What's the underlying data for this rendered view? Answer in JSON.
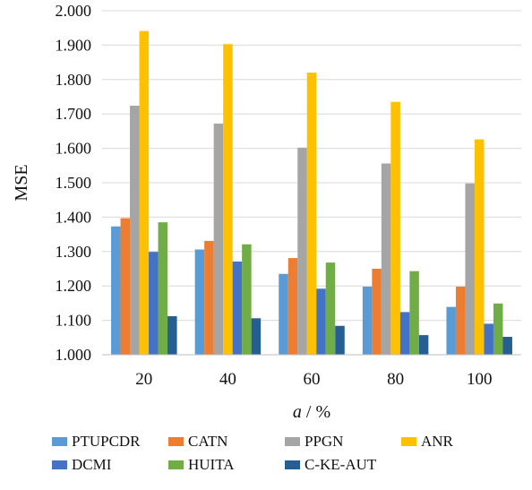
{
  "chart_data": {
    "type": "bar",
    "categories": [
      "20",
      "40",
      "60",
      "80",
      "100"
    ],
    "series": [
      {
        "name": "PTUPCDR",
        "color": "#5B9BD5",
        "values": [
          1.373,
          1.306,
          1.235,
          1.198,
          1.139
        ]
      },
      {
        "name": "CATN",
        "color": "#ED7D31",
        "values": [
          1.397,
          1.331,
          1.281,
          1.25,
          1.198
        ]
      },
      {
        "name": "PPGN",
        "color": "#A5A5A5",
        "values": [
          1.724,
          1.672,
          1.602,
          1.556,
          1.498
        ]
      },
      {
        "name": "ANR",
        "color": "#FFC000",
        "values": [
          1.941,
          1.903,
          1.82,
          1.735,
          1.626
        ]
      },
      {
        "name": "DCMI",
        "color": "#4472C4",
        "values": [
          1.299,
          1.271,
          1.192,
          1.124,
          1.09
        ]
      },
      {
        "name": "HUITA",
        "color": "#70AD47",
        "values": [
          1.385,
          1.321,
          1.268,
          1.243,
          1.149
        ]
      },
      {
        "name": "C-KE-AUT",
        "color": "#255E91",
        "values": [
          1.112,
          1.106,
          1.084,
          1.057,
          1.052
        ]
      }
    ],
    "xlabel_italic": "a",
    "xlabel_unit": " / %",
    "ylabel": "MSE",
    "ylim": [
      1.0,
      2.0
    ],
    "yticks": [
      "1.000",
      "1.100",
      "1.200",
      "1.300",
      "1.400",
      "1.500",
      "1.600",
      "1.700",
      "1.800",
      "1.900",
      "2.000"
    ],
    "grid": true,
    "legend_position": "bottom"
  }
}
